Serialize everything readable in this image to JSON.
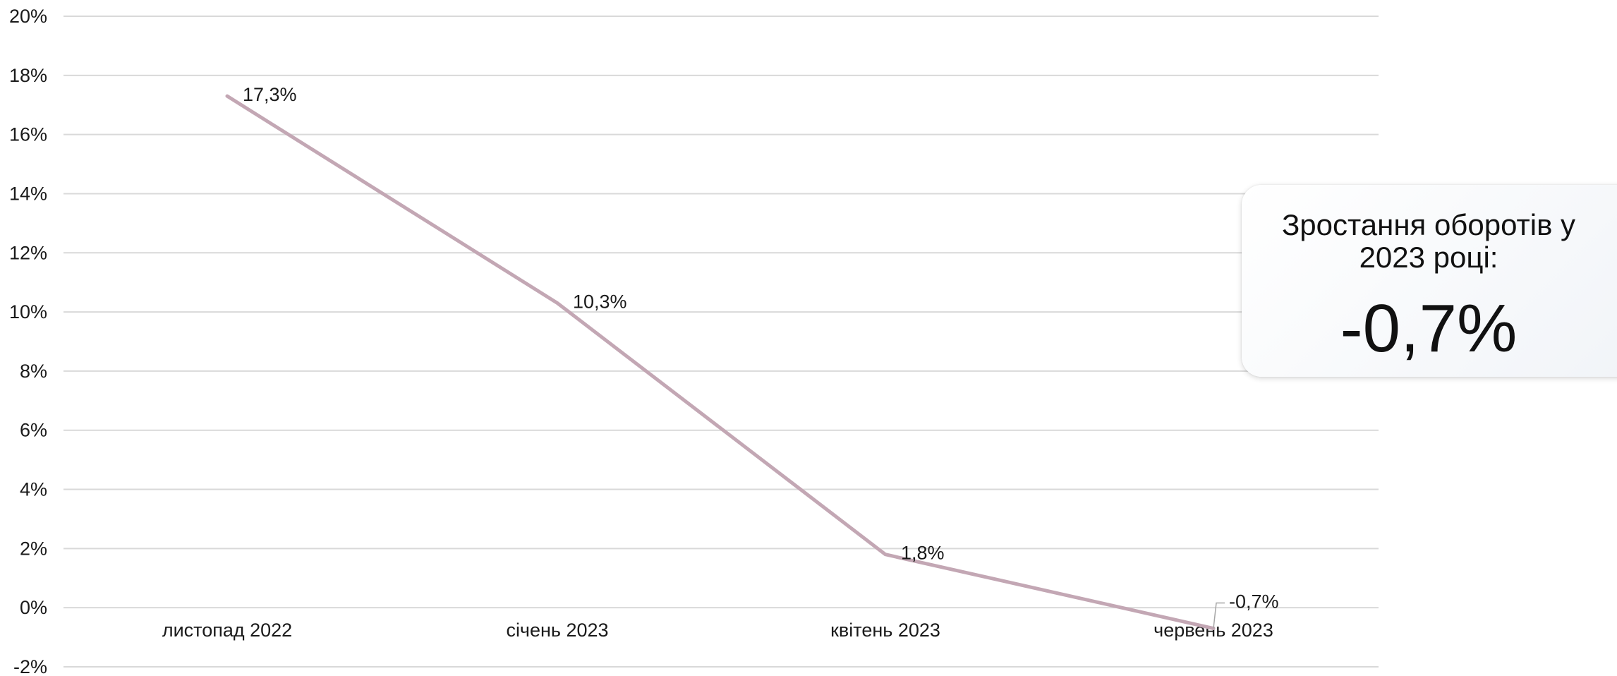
{
  "chart_data": {
    "type": "line",
    "categories": [
      "листопад 2022",
      "січень 2023",
      "квітень 2023",
      "червень 2023"
    ],
    "values": [
      17.3,
      10.3,
      1.8,
      -0.7
    ],
    "data_labels": [
      "17,3%",
      "10,3%",
      "1,8%",
      "-0,7%"
    ],
    "y_ticks": [
      20,
      18,
      16,
      14,
      12,
      10,
      8,
      6,
      4,
      2,
      0,
      -2
    ],
    "y_tick_labels": [
      "20%",
      "18%",
      "16%",
      "14%",
      "12%",
      "10%",
      "8%",
      "6%",
      "4%",
      "2%",
      "0%",
      "-2%"
    ],
    "ylim": [
      -2,
      20
    ],
    "grid": true,
    "line_color": "#c3a7b4",
    "gridline_color": "#d9d9d9"
  },
  "callout": {
    "title": "Зростання оборотів у 2023 році:",
    "value": "-0,7%"
  }
}
